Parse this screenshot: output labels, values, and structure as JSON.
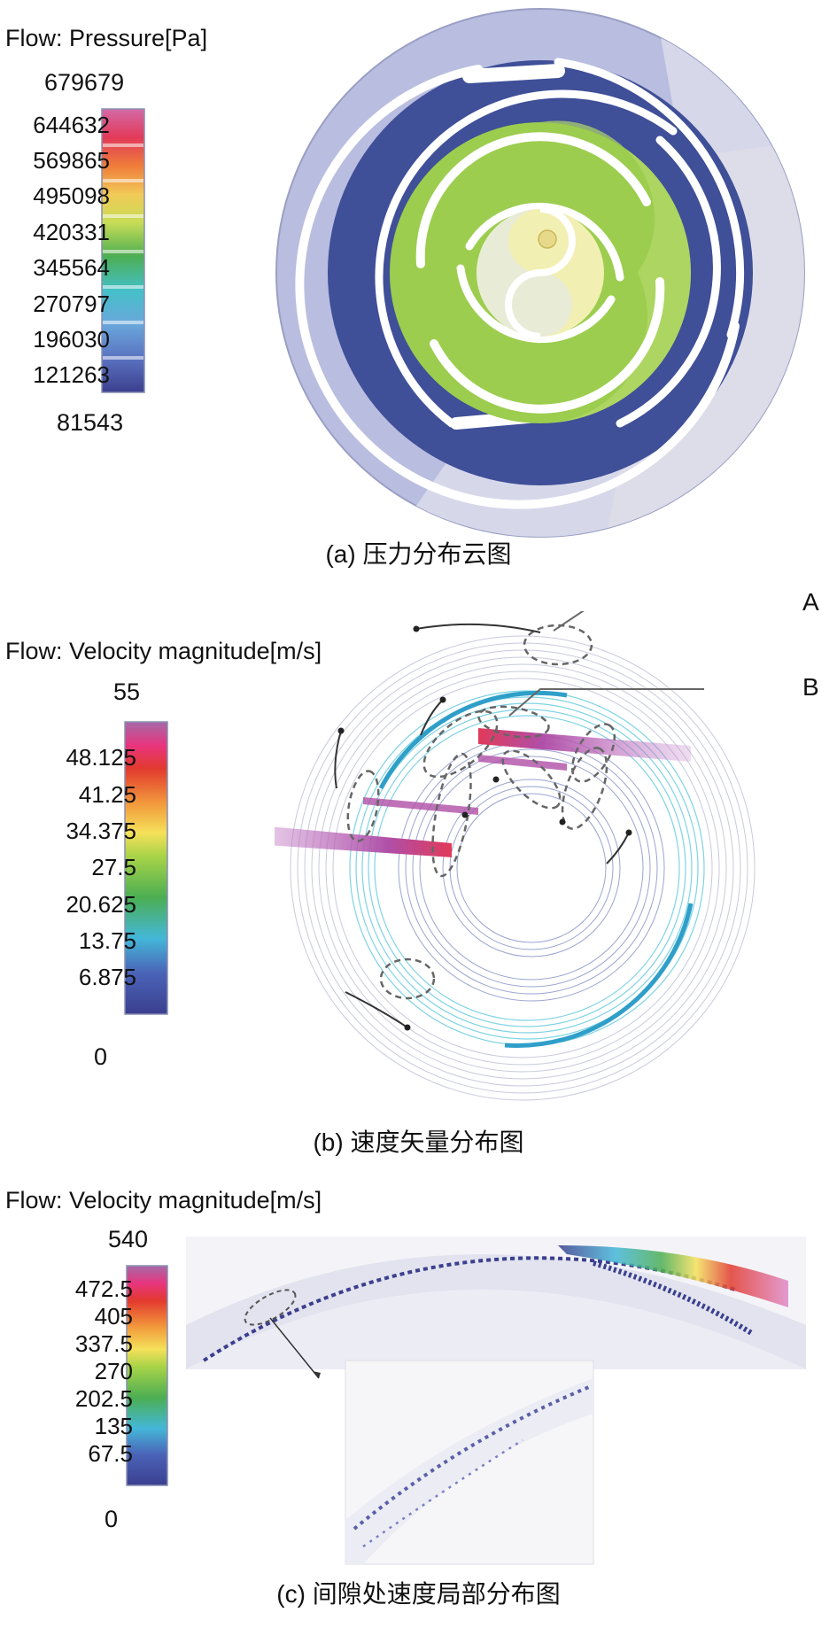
{
  "panel_a": {
    "legend_title": "Flow: Pressure[Pa]",
    "max": "679679",
    "min": "81543",
    "ticks": [
      "644632",
      "569865",
      "495098",
      "420331",
      "345564",
      "270797",
      "196030",
      "121263"
    ],
    "caption_label": "(a)",
    "caption_text": "压力分布云图"
  },
  "panel_b": {
    "legend_title": "Flow: Velocity magnitude[m/s]",
    "max": "55",
    "min": "0",
    "ticks": [
      "48.125",
      "41.25",
      "34.375",
      "27.5",
      "20.625",
      "13.75",
      "6.875"
    ],
    "annotations": [
      "A",
      "B"
    ],
    "caption_label": "(b)",
    "caption_text": "速度矢量分布图"
  },
  "panel_c": {
    "legend_title": "Flow: Velocity magnitude[m/s]",
    "max": "540",
    "min": "0",
    "ticks": [
      "472.5",
      "405",
      "337.5",
      "270",
      "202.5",
      "135",
      "67.5"
    ],
    "caption_label": "(c)",
    "caption_text": "间隙处速度局部分布图"
  },
  "colors": {
    "scale": [
      "#3b3f8e",
      "#5a72c0",
      "#44b7d8",
      "#9ed9cf",
      "#4cae52",
      "#c8dd56",
      "#f5e15a",
      "#f29a3c",
      "#e23a2e",
      "#e8357e",
      "#b25fa8"
    ],
    "pressure_outer": "#3f4f98",
    "pressure_mid": "#9ccd4e",
    "pressure_inner": "#f2efb2",
    "casing": "#b9bde0"
  }
}
